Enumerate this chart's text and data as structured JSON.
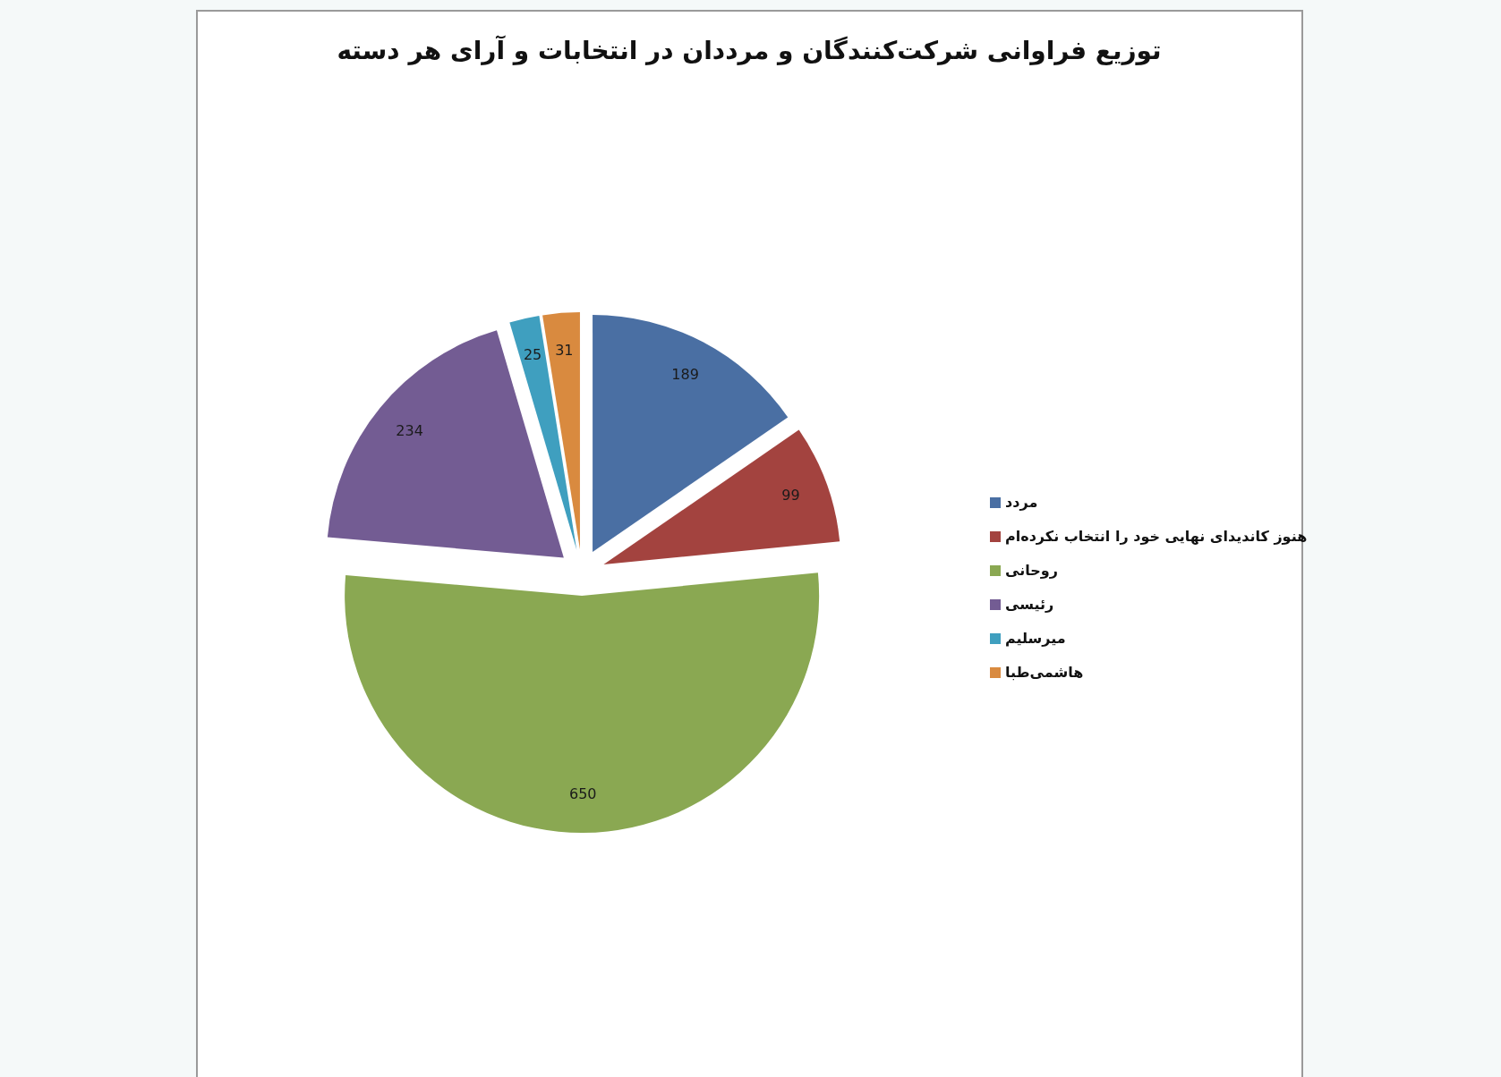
{
  "chart_data": {
    "type": "pie",
    "title": "توزیع فراوانی شرکت‌کنندگان و مرددان در انتخابات و آرای هر دسته",
    "categories": [
      "مردد",
      "هنوز کاندیدای نهایی خود را انتخاب نکرده‌ام",
      "روحانی",
      "رئیسی",
      "میرسلیم",
      "هاشمی‌طبا"
    ],
    "values": [
      189,
      99,
      650,
      234,
      25,
      31
    ],
    "colors": [
      "#4a6fa3",
      "#a3433f",
      "#8aa852",
      "#735c93",
      "#3f9fbf",
      "#d98a3f"
    ],
    "data_labels": true,
    "legend": "right"
  }
}
